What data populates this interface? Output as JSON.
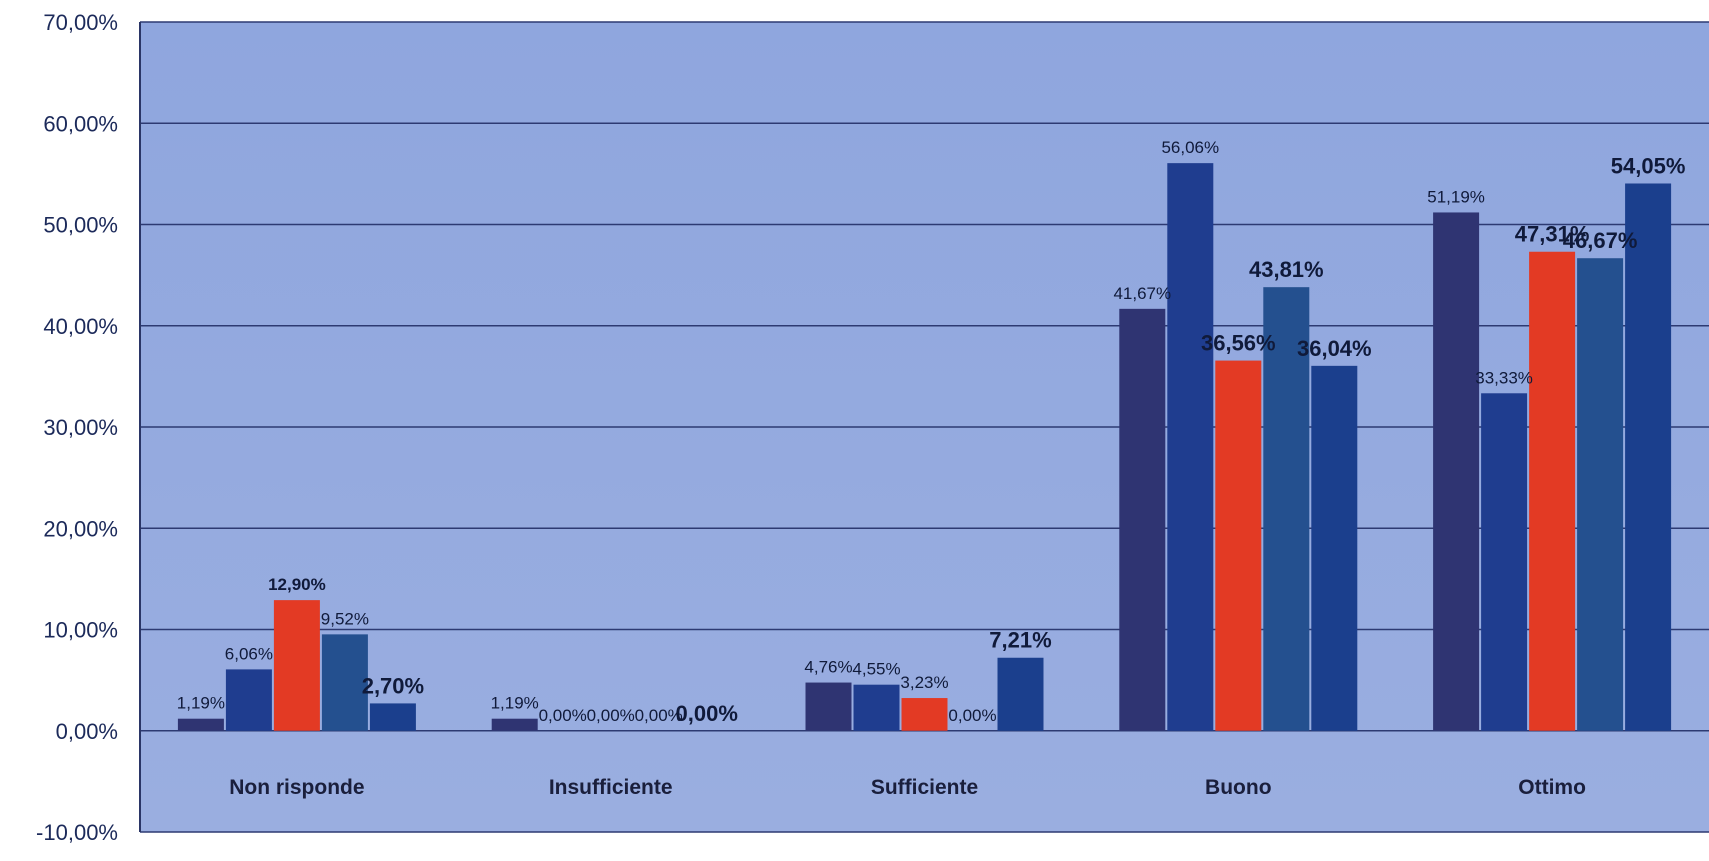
{
  "chart_data": {
    "type": "bar",
    "title": "",
    "xlabel": "",
    "ylabel": "",
    "ylim": [
      -10,
      70
    ],
    "yticks": [
      "70,00%",
      "60,00%",
      "50,00%",
      "40,00%",
      "30,00%",
      "20,00%",
      "10,00%",
      "0,00%",
      "-10,00%"
    ],
    "categories": [
      "Non risponde",
      "Insufficiente",
      "Sufficiente",
      "Buono",
      "Ottimo"
    ],
    "grid": true,
    "legend": "none",
    "series": [
      {
        "color": "#2f3472",
        "values": [
          1.19,
          1.19,
          4.76,
          41.67,
          51.19
        ],
        "labels": [
          "1,19%",
          "1,19%",
          "4,76%",
          "41,67%",
          "51,19%"
        ]
      },
      {
        "color": "#1f3d8f",
        "values": [
          6.06,
          0.0,
          4.55,
          56.06,
          33.33
        ],
        "labels": [
          "6,06%",
          "0,00%",
          "4,55%",
          "56,06%",
          "33,33%"
        ]
      },
      {
        "color": "#e33a24",
        "values": [
          12.9,
          0.0,
          3.23,
          36.56,
          47.31
        ],
        "labels": [
          "12,90%",
          "0,00%",
          "3,23%",
          "36,56%",
          "47,31%"
        ]
      },
      {
        "color": "#24508f",
        "values": [
          9.52,
          0.0,
          0.0,
          43.81,
          46.67
        ],
        "labels": [
          "9,52%",
          "0,00%",
          "0,00%",
          "43,81%",
          "46,67%"
        ]
      },
      {
        "color": "#1b3f8d",
        "values": [
          2.7,
          0.0,
          7.21,
          36.04,
          54.05
        ],
        "labels": [
          "2,70%",
          "0,00%",
          "7,21%",
          "36,04%",
          "54,05%"
        ]
      }
    ]
  }
}
